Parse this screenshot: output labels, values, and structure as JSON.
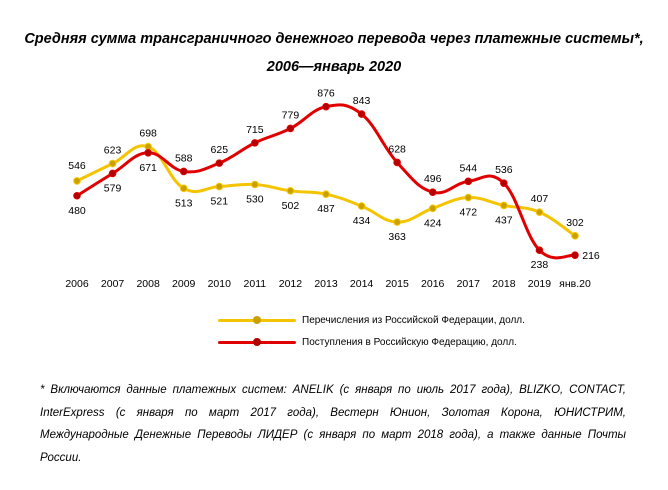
{
  "title_line1": "Средняя сумма трансграничного денежного перевода через платежные системы*,",
  "title_line2": "2006—январь 2020",
  "chart_data": {
    "type": "line",
    "categories": [
      "2006",
      "2007",
      "2008",
      "2009",
      "2010",
      "2011",
      "2012",
      "2013",
      "2014",
      "2015",
      "2016",
      "2017",
      "2018",
      "2019",
      "янв.20"
    ],
    "series": [
      {
        "name": "Перечисления из Российской Федерации, долл.",
        "color": "#F5C400",
        "marker": "#C9A000",
        "values": [
          546,
          623,
          698,
          513,
          521,
          530,
          502,
          487,
          434,
          363,
          424,
          472,
          437,
          407,
          302
        ]
      },
      {
        "name": "Поступления в Российскую Федерацию,  долл.",
        "color": "#E00000",
        "marker": "#B00000",
        "values": [
          480,
          579,
          671,
          588,
          625,
          715,
          779,
          876,
          843,
          628,
          496,
          544,
          536,
          238,
          216
        ]
      }
    ],
    "ylim": [
      150,
      950
    ],
    "grid": false,
    "legend": "bottom-center"
  },
  "footnote": "* Включаются данные платежных систем: ANELIK (с января по июль 2017 года), BLIZKO, CONTACT, InterExpress (с января по март 2017 года), Вестерн Юнион, Золотая Корона, ЮНИСТРИМ, Международные Денежные Переводы ЛИДЕР (с января по март 2018 года), а также данные Почты России."
}
